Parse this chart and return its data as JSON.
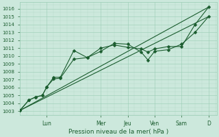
{
  "background_color": "#cce8dc",
  "plot_bg_color": "#cce8dc",
  "grid_color": "#99ccb3",
  "line_color": "#1a5c2e",
  "marker_color": "#1a5c2e",
  "xlabel": "Pression niveau de la mer( hPa )",
  "ylim": [
    1002.5,
    1016.8
  ],
  "xlim": [
    0,
    7.3
  ],
  "yticks": [
    1003,
    1004,
    1005,
    1006,
    1007,
    1008,
    1009,
    1010,
    1011,
    1012,
    1013,
    1014,
    1015,
    1016
  ],
  "day_labels": [
    "Lun",
    "Mer",
    "Jeu",
    "Ven",
    "Sam",
    "D"
  ],
  "day_positions": [
    1.0,
    3.0,
    4.0,
    5.0,
    6.0,
    7.0
  ],
  "series1_x": [
    0.0,
    0.33,
    0.58,
    0.83,
    1.0,
    1.25,
    1.5,
    2.0,
    2.5,
    3.0,
    3.5,
    4.0,
    4.5,
    4.75,
    5.0,
    5.5,
    6.0,
    6.5,
    7.0
  ],
  "series1_y": [
    1003.1,
    1004.4,
    1004.8,
    1005.0,
    1006.1,
    1007.1,
    1007.2,
    1009.6,
    1009.8,
    1011.0,
    1011.4,
    1011.1,
    1010.9,
    1010.5,
    1010.9,
    1011.2,
    1011.2,
    1014.0,
    1016.2
  ],
  "series2_x": [
    0.0,
    0.33,
    0.58,
    0.83,
    1.0,
    1.25,
    1.5,
    2.0,
    2.5,
    3.0,
    3.5,
    4.0,
    4.5,
    4.75,
    5.0,
    5.5,
    6.0,
    6.5,
    7.0
  ],
  "series2_y": [
    1003.1,
    1004.4,
    1004.8,
    1005.0,
    1006.1,
    1007.3,
    1007.3,
    1010.7,
    1009.8,
    1010.6,
    1011.6,
    1011.5,
    1010.5,
    1009.5,
    1010.6,
    1010.8,
    1011.5,
    1013.0,
    1015.0
  ],
  "trend1_x": [
    0.0,
    7.0
  ],
  "trend1_y": [
    1003.1,
    1016.2
  ],
  "trend2_x": [
    0.0,
    7.0
  ],
  "trend2_y": [
    1003.1,
    1015.0
  ],
  "markersize": 2.5,
  "linewidth": 0.8
}
